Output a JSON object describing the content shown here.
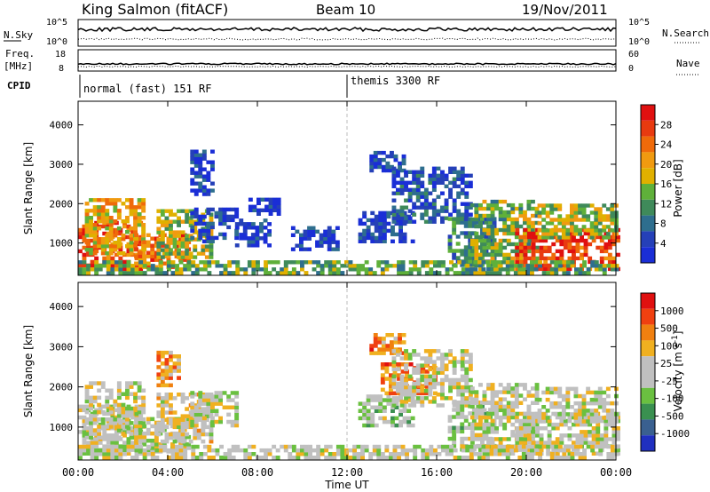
{
  "header": {
    "station": "King Salmon (fitACF)",
    "beam": "Beam 10",
    "date": "19/Nov/2011"
  },
  "status_panels": {
    "nsky_label": "N.Sky",
    "nsky_ticks": [
      "10^5",
      "10^0"
    ],
    "nsearch_label": "N.Search",
    "nsearch_ticks": [
      "10^5",
      "10^0"
    ],
    "freq_label_1": "Freq.",
    "freq_label_2": "[MHz]",
    "freq_ticks": [
      "18",
      "8"
    ],
    "nave_label": "Nave",
    "nave_ticks": [
      "60",
      "0"
    ],
    "cpid_label": "CPID",
    "cpid_segments": [
      {
        "label": "normal (fast) 151 RF",
        "start_hour": 0
      },
      {
        "label": "themis 3300 RF",
        "start_hour": 12
      }
    ]
  },
  "colors": {
    "power": [
      "#1a2ed6",
      "#2540b8",
      "#2e6e8e",
      "#3f8a5a",
      "#5fb03a",
      "#e0b000",
      "#f09a10",
      "#ef6a0a",
      "#e83a10",
      "#e01010"
    ],
    "velocity": [
      "#2030c0",
      "#3a6090",
      "#3a9050",
      "#6ac040",
      "#c0c0c0",
      "#c0c0c0",
      "#f0b020",
      "#f08010",
      "#f04010",
      "#e01010"
    ]
  },
  "chart_data": [
    {
      "type": "heatmap",
      "name": "power",
      "xlabel": "Time UT",
      "ylabel": "Slant Range [km]",
      "x_ticks": [
        "00:00",
        "04:00",
        "08:00",
        "12:00",
        "16:00",
        "20:00",
        "00:00"
      ],
      "xlim_hours": [
        0,
        24
      ],
      "ylim_km": [
        180,
        4600
      ],
      "y_ticks": [
        1000,
        2000,
        3000,
        4000
      ],
      "colorbar_label": "Power [dB]",
      "colorbar_ticks": [
        "28",
        "24",
        "20",
        "16",
        "12",
        "8",
        "4"
      ],
      "regions": [
        {
          "t": [
            0.0,
            2.8
          ],
          "r": [
            300,
            1500
          ],
          "level": 0.82
        },
        {
          "t": [
            0.3,
            3.0
          ],
          "r": [
            700,
            2100
          ],
          "level": 0.6
        },
        {
          "t": [
            2.5,
            5.0
          ],
          "r": [
            350,
            1200
          ],
          "level": 0.75
        },
        {
          "t": [
            3.5,
            6.0
          ],
          "r": [
            600,
            1800
          ],
          "level": 0.5
        },
        {
          "t": [
            5.0,
            7.0
          ],
          "r": [
            1000,
            1900
          ],
          "level": 0.12
        },
        {
          "t": [
            5.0,
            6.0
          ],
          "r": [
            2200,
            3300
          ],
          "level": 0.1
        },
        {
          "t": [
            7.0,
            8.5
          ],
          "r": [
            900,
            1600
          ],
          "level": 0.08
        },
        {
          "t": [
            7.6,
            9.0
          ],
          "r": [
            1700,
            2100
          ],
          "level": 0.1
        },
        {
          "t": [
            9.5,
            11.5
          ],
          "r": [
            800,
            1400
          ],
          "level": 0.1
        },
        {
          "t": [
            12.5,
            15.0
          ],
          "r": [
            1000,
            1800
          ],
          "level": 0.1
        },
        {
          "t": [
            13.0,
            14.5
          ],
          "r": [
            2800,
            3300
          ],
          "level": 0.12
        },
        {
          "t": [
            14.0,
            17.5
          ],
          "r": [
            1500,
            2900
          ],
          "level": 0.15
        },
        {
          "t": [
            16.5,
            18.5
          ],
          "r": [
            400,
            1600
          ],
          "level": 0.3
        },
        {
          "t": [
            17.5,
            20.5
          ],
          "r": [
            300,
            2100
          ],
          "level": 0.45
        },
        {
          "t": [
            19.5,
            24.0
          ],
          "r": [
            300,
            1300
          ],
          "level": 0.85
        },
        {
          "t": [
            20.5,
            24.0
          ],
          "r": [
            1100,
            2000
          ],
          "level": 0.5
        },
        {
          "t": [
            0.0,
            24.0
          ],
          "r": [
            200,
            500
          ],
          "level": 0.4
        }
      ]
    },
    {
      "type": "heatmap",
      "name": "velocity",
      "xlabel": "Time UT",
      "ylabel": "Slant Range [km]",
      "x_ticks": [
        "00:00",
        "04:00",
        "08:00",
        "12:00",
        "16:00",
        "20:00",
        "00:00"
      ],
      "xlim_hours": [
        0,
        24
      ],
      "ylim_km": [
        180,
        4600
      ],
      "y_ticks": [
        1000,
        2000,
        3000,
        4000
      ],
      "colorbar_label": "Velocity [m s^-1]",
      "colorbar_ticks": [
        "1000",
        "500",
        "100",
        "25",
        "-25",
        "-100",
        "-500",
        "-1000"
      ],
      "regions": [
        {
          "t": [
            0.0,
            2.8
          ],
          "r": [
            300,
            1500
          ],
          "level": 0.5
        },
        {
          "t": [
            0.3,
            3.0
          ],
          "r": [
            700,
            2100
          ],
          "level": 0.5
        },
        {
          "t": [
            2.5,
            5.0
          ],
          "r": [
            350,
            1200
          ],
          "level": 0.5
        },
        {
          "t": [
            3.5,
            6.0
          ],
          "r": [
            600,
            1800
          ],
          "level": 0.55
        },
        {
          "t": [
            5.0,
            7.0
          ],
          "r": [
            1000,
            1900
          ],
          "level": 0.5
        },
        {
          "t": [
            3.5,
            4.5
          ],
          "r": [
            2000,
            2900
          ],
          "level": 0.72
        },
        {
          "t": [
            12.5,
            15.0
          ],
          "r": [
            1000,
            1800
          ],
          "level": 0.45
        },
        {
          "t": [
            13.0,
            14.5
          ],
          "r": [
            2800,
            3300
          ],
          "level": 0.75
        },
        {
          "t": [
            13.5,
            16.0
          ],
          "r": [
            1800,
            2600
          ],
          "level": 0.78
        },
        {
          "t": [
            14.0,
            17.5
          ],
          "r": [
            1500,
            2900
          ],
          "level": 0.5
        },
        {
          "t": [
            16.5,
            18.5
          ],
          "r": [
            400,
            1600
          ],
          "level": 0.45
        },
        {
          "t": [
            17.5,
            20.5
          ],
          "r": [
            300,
            2100
          ],
          "level": 0.5
        },
        {
          "t": [
            19.5,
            24.0
          ],
          "r": [
            300,
            1300
          ],
          "level": 0.5
        },
        {
          "t": [
            20.5,
            24.0
          ],
          "r": [
            1100,
            2000
          ],
          "level": 0.5
        },
        {
          "t": [
            0.0,
            24.0
          ],
          "r": [
            200,
            500
          ],
          "level": 0.5
        }
      ]
    }
  ]
}
